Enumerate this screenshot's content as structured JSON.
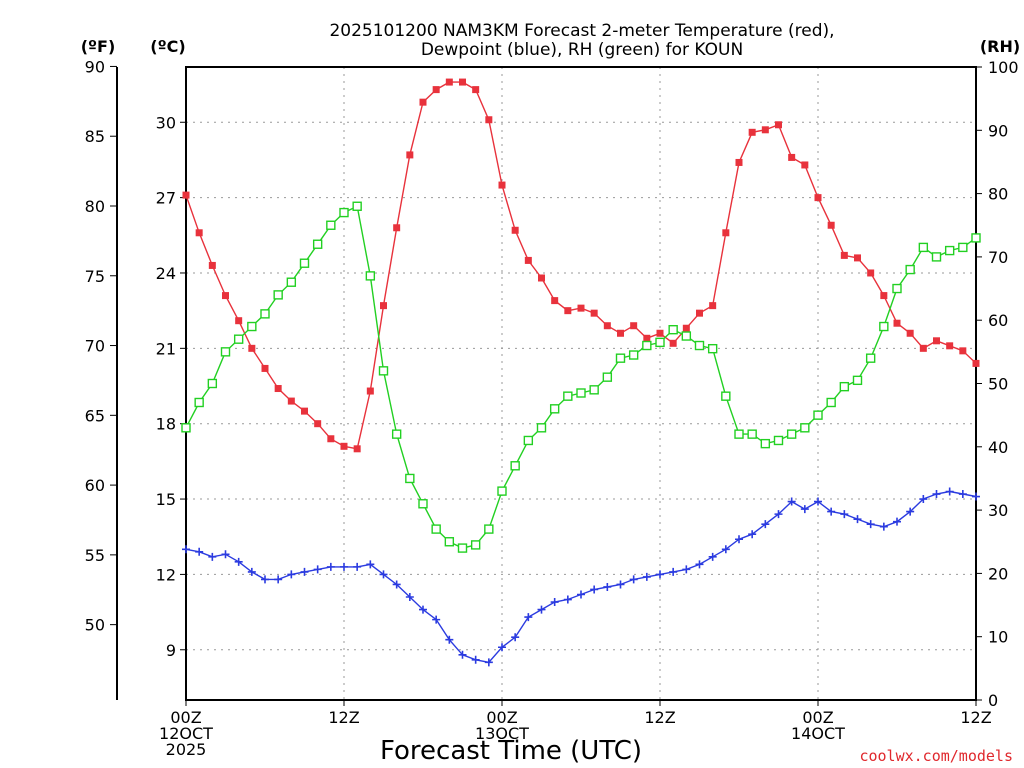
{
  "chart_data": {
    "type": "line",
    "title_line1": "2025101200 NAM3KM Forecast 2-meter Temperature (red),",
    "title_line2": "Dewpoint (blue), RH (green) for KOUN",
    "xlabel": "Forecast Time (UTC)",
    "credit": "coolwx.com/models",
    "units": {
      "fahrenheit": "(ºF)",
      "celsius": "(ºC)",
      "rh": "(RH)"
    },
    "xlim": [
      0,
      60
    ],
    "celsius_ylim": [
      7.0,
      32.2
    ],
    "fahrenheit_ticks": [
      "50",
      "55",
      "60",
      "65",
      "70",
      "75",
      "80",
      "85",
      "90"
    ],
    "fahrenheit_tick_values": [
      50,
      55,
      60,
      65,
      70,
      75,
      80,
      85,
      90
    ],
    "celsius_ticks": [
      "9",
      "12",
      "15",
      "18",
      "21",
      "24",
      "27",
      "30"
    ],
    "celsius_tick_values": [
      9,
      12,
      15,
      18,
      21,
      24,
      27,
      30
    ],
    "rh_ylim": [
      0,
      100
    ],
    "rh_ticks": [
      "0",
      "10",
      "20",
      "30",
      "40",
      "50",
      "60",
      "70",
      "80",
      "90",
      "100"
    ],
    "rh_tick_values": [
      0,
      10,
      20,
      30,
      40,
      50,
      60,
      70,
      80,
      90,
      100
    ],
    "x_ticks": [
      {
        "hour": 0,
        "lines": [
          "00Z",
          "12OCT",
          "2025"
        ]
      },
      {
        "hour": 12,
        "lines": [
          "12Z"
        ]
      },
      {
        "hour": 24,
        "lines": [
          "00Z",
          "13OCT"
        ]
      },
      {
        "hour": 36,
        "lines": [
          "12Z"
        ]
      },
      {
        "hour": 48,
        "lines": [
          "00Z",
          "14OCT"
        ]
      },
      {
        "hour": 60,
        "lines": [
          "12Z"
        ]
      }
    ],
    "hours": [
      0,
      1,
      2,
      3,
      4,
      5,
      6,
      7,
      8,
      9,
      10,
      11,
      12,
      13,
      14,
      15,
      16,
      17,
      18,
      19,
      20,
      21,
      22,
      23,
      24,
      25,
      26,
      27,
      28,
      29,
      30,
      31,
      32,
      33,
      34,
      35,
      36,
      37,
      38,
      39,
      40,
      41,
      42,
      43,
      44,
      45,
      46,
      47,
      48,
      49,
      50,
      51,
      52,
      53,
      54,
      55,
      56,
      57,
      58,
      59,
      60
    ],
    "series": [
      {
        "name": "2-meter Temperature",
        "color": "#e8323c",
        "axis": "celsius",
        "marker": "filled-square",
        "values": [
          27.1,
          25.6,
          24.3,
          23.1,
          22.1,
          21.0,
          20.2,
          19.4,
          18.9,
          18.5,
          18.0,
          17.4,
          17.1,
          17.0,
          19.3,
          22.7,
          25.8,
          28.7,
          30.8,
          31.3,
          31.6,
          31.6,
          31.3,
          30.1,
          27.5,
          25.7,
          24.5,
          23.8,
          22.9,
          22.5,
          22.6,
          22.4,
          21.9,
          21.6,
          21.9,
          21.4,
          21.6,
          21.2,
          21.8,
          22.4,
          22.7,
          25.6,
          28.4,
          29.6,
          29.7,
          29.9,
          28.6,
          28.3,
          27.0,
          25.9,
          24.7,
          24.6,
          24.0,
          23.1,
          22.0,
          21.6,
          21.0,
          21.3,
          21.1,
          20.9,
          20.4
        ]
      },
      {
        "name": "Dewpoint",
        "color": "#2b3be0",
        "axis": "celsius",
        "marker": "plus",
        "values": [
          13.0,
          12.9,
          12.7,
          12.8,
          12.5,
          12.1,
          11.8,
          11.8,
          12.0,
          12.1,
          12.2,
          12.3,
          12.3,
          12.3,
          12.4,
          12.0,
          11.6,
          11.1,
          10.6,
          10.2,
          9.4,
          8.8,
          8.6,
          8.5,
          9.1,
          9.5,
          10.3,
          10.6,
          10.9,
          11.0,
          11.2,
          11.4,
          11.5,
          11.6,
          11.8,
          11.9,
          12.0,
          12.1,
          12.2,
          12.4,
          12.7,
          13.0,
          13.4,
          13.6,
          14.0,
          14.4,
          14.9,
          14.6,
          14.9,
          14.5,
          14.4,
          14.2,
          14.0,
          13.9,
          14.1,
          14.5,
          15.0,
          15.2,
          15.3,
          15.2,
          15.1
        ]
      },
      {
        "name": "RH",
        "color": "#22d022",
        "axis": "rh",
        "marker": "open-square",
        "values": [
          43,
          47,
          50,
          55,
          57,
          59,
          61,
          64,
          66,
          69,
          72,
          75,
          77,
          78,
          67,
          52,
          42,
          35,
          31,
          27,
          25,
          24,
          24.5,
          27,
          33,
          37,
          41,
          43,
          46,
          48,
          48.5,
          49,
          51,
          54,
          54.5,
          56,
          56.5,
          58.5,
          57.5,
          56,
          55.5,
          48,
          42,
          42,
          40.5,
          41,
          42,
          43,
          45,
          47,
          49.5,
          50.5,
          54,
          59,
          65,
          68,
          71.5,
          70,
          71,
          71.5,
          73
        ]
      }
    ]
  }
}
